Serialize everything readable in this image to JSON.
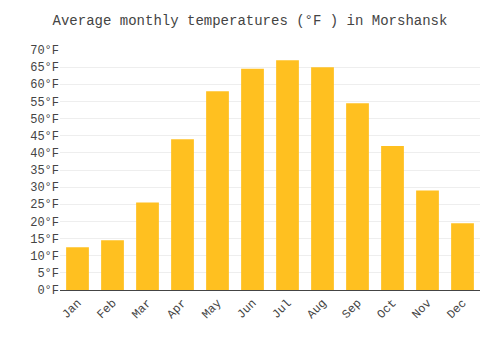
{
  "chart_data": {
    "type": "bar",
    "title": "Average monthly temperatures (°F ) in Morshansk",
    "categories": [
      "Jan",
      "Feb",
      "Mar",
      "Apr",
      "May",
      "Jun",
      "Jul",
      "Aug",
      "Sep",
      "Oct",
      "Nov",
      "Dec"
    ],
    "values": [
      12.5,
      14.5,
      25.5,
      44.0,
      58.0,
      64.5,
      67.0,
      65.0,
      54.5,
      42.0,
      29.0,
      19.5
    ],
    "color": "#FFC020",
    "ylim": [
      0,
      70
    ],
    "yticks": [
      {
        "value": 0,
        "label": "0°F"
      },
      {
        "value": 5,
        "label": "5°F"
      },
      {
        "value": 10,
        "label": "10°F"
      },
      {
        "value": 15,
        "label": "15°F"
      },
      {
        "value": 20,
        "label": "20°F"
      },
      {
        "value": 25,
        "label": "25°F"
      },
      {
        "value": 30,
        "label": "30°F"
      },
      {
        "value": 35,
        "label": "35°F"
      },
      {
        "value": 40,
        "label": "40°F"
      },
      {
        "value": 45,
        "label": "45°F"
      },
      {
        "value": 50,
        "label": "50°F"
      },
      {
        "value": 55,
        "label": "55°F"
      },
      {
        "value": 60,
        "label": "60°F"
      },
      {
        "value": 65,
        "label": "65°F"
      },
      {
        "value": 70,
        "label": "70°F"
      }
    ],
    "grid": true
  }
}
